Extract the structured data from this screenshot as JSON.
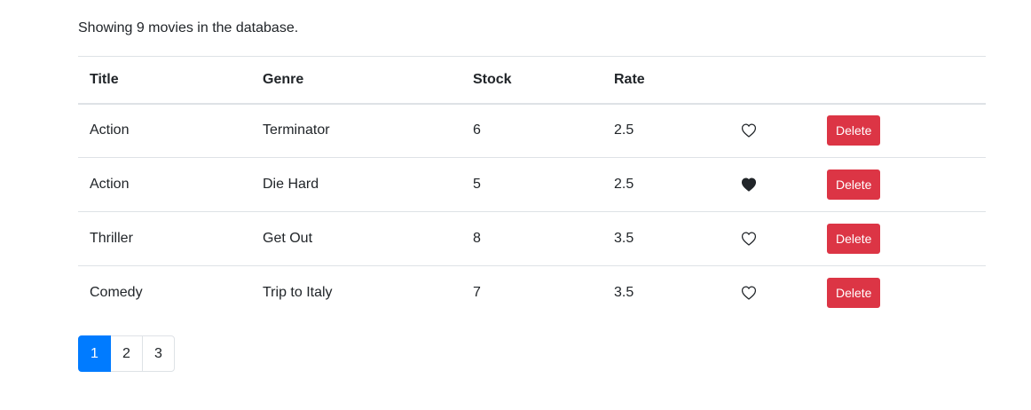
{
  "summary": "Showing 9 movies in the database.",
  "table": {
    "columns": [
      "Title",
      "Genre",
      "Stock",
      "Rate"
    ],
    "rows": [
      {
        "title": "Action",
        "genre": "Terminator",
        "stock": "6",
        "rate": "2.5",
        "liked": false,
        "delete_label": "Delete"
      },
      {
        "title": "Action",
        "genre": "Die Hard",
        "stock": "5",
        "rate": "2.5",
        "liked": true,
        "delete_label": "Delete"
      },
      {
        "title": "Thriller",
        "genre": "Get Out",
        "stock": "8",
        "rate": "3.5",
        "liked": false,
        "delete_label": "Delete"
      },
      {
        "title": "Comedy",
        "genre": "Trip to Italy",
        "stock": "7",
        "rate": "3.5",
        "liked": false,
        "delete_label": "Delete"
      }
    ]
  },
  "pagination": {
    "pages": [
      "1",
      "2",
      "3"
    ],
    "active": "1"
  },
  "colors": {
    "primary": "#007bff",
    "danger": "#dc3545",
    "text": "#212529",
    "border": "#dee2e6"
  },
  "icons": {
    "like_empty": "heart-outline-icon",
    "like_filled": "heart-filled-icon"
  }
}
